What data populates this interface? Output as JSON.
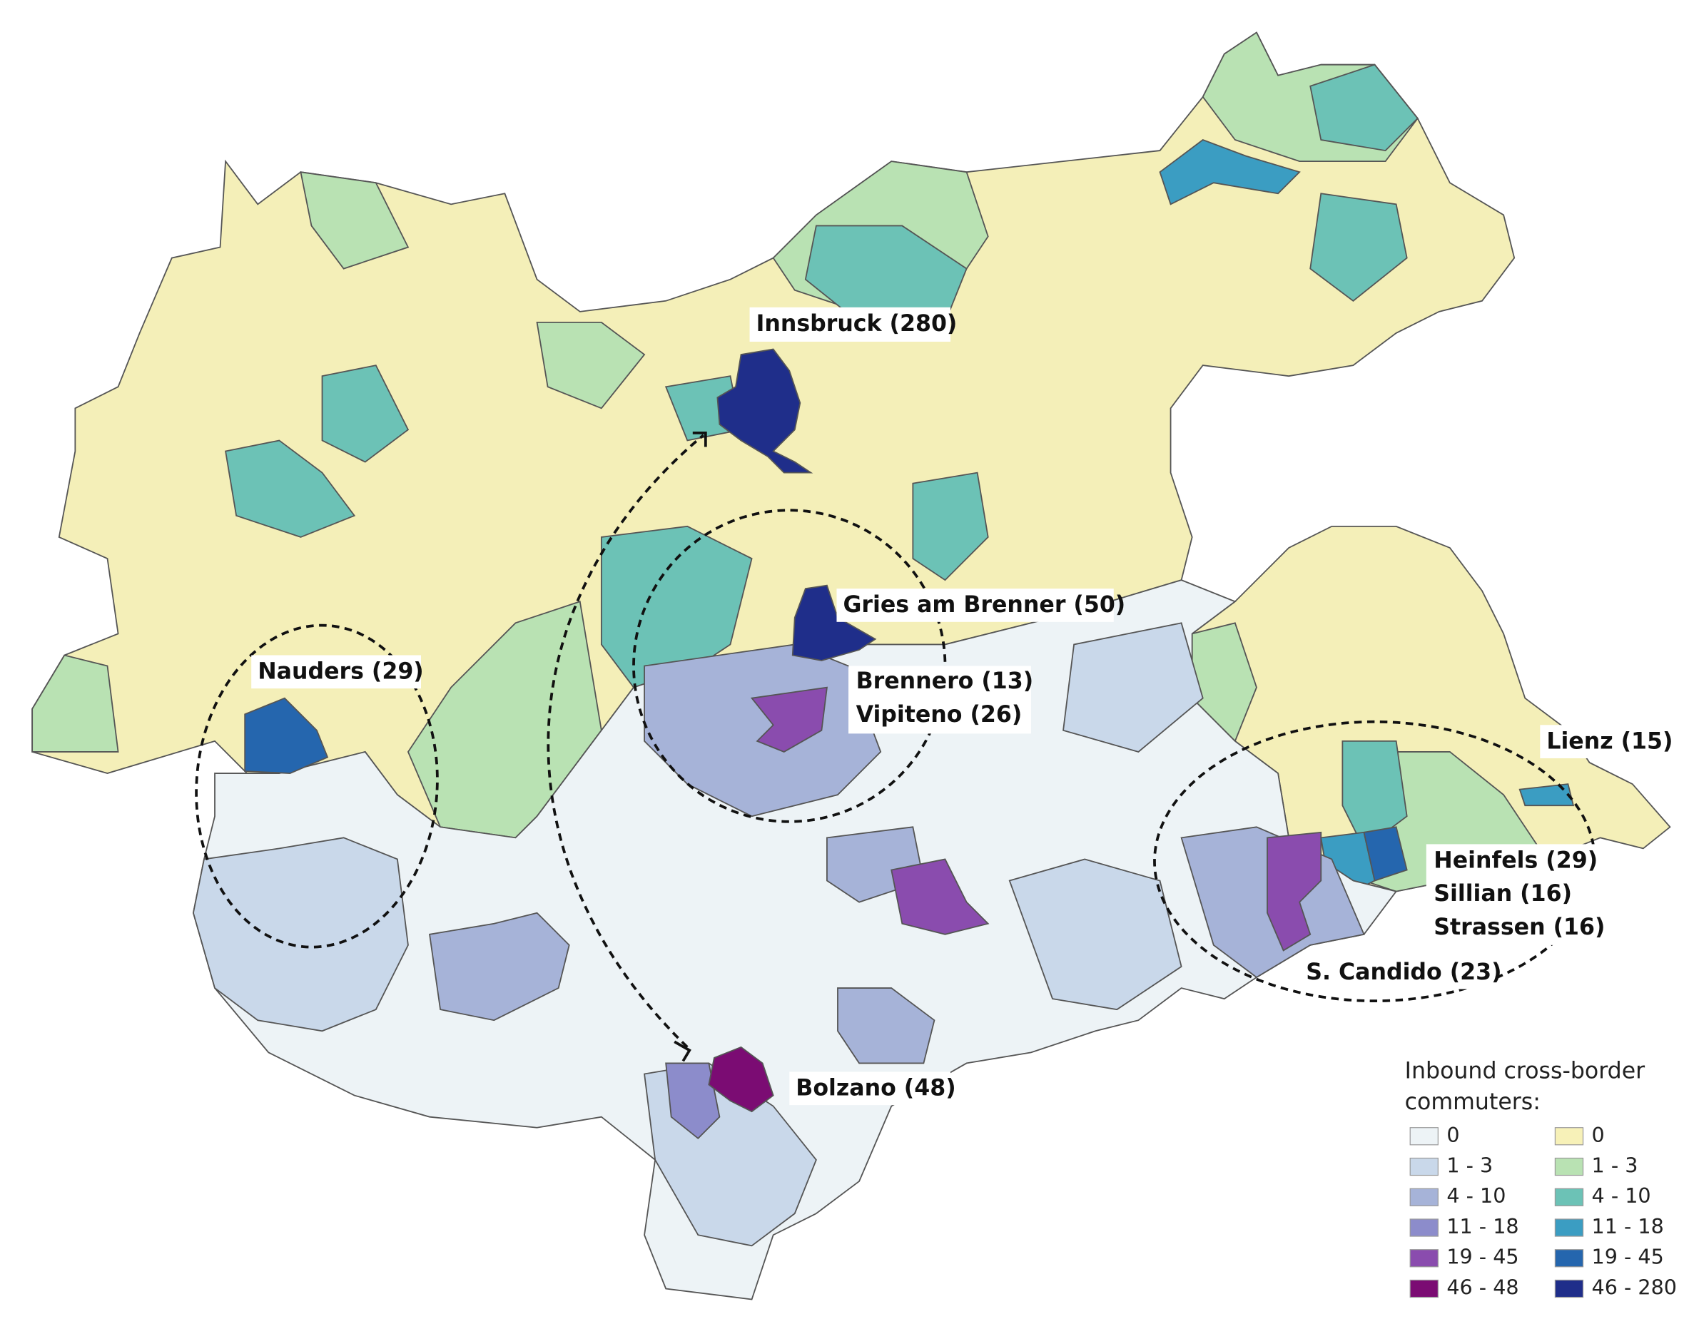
{
  "labels": {
    "innsbruck": "Innsbruck (280)",
    "gries": "Gries am Brenner (50)",
    "brennero": "Brennero (13)",
    "vipiteno": "Vipiteno (26)",
    "nauders": "Nauders (29)",
    "lienz": "Lienz (15)",
    "heinfels": "Heinfels (29)",
    "sillian": "Sillian (16)",
    "strassen": "Strassen (16)",
    "scandido": "S. Candido (23)",
    "bolzano": "Bolzano (48)"
  },
  "legend": {
    "title": [
      "Inbound cross-border",
      "commuters:"
    ],
    "italy": [
      {
        "label": "0",
        "color": "#edf3f6"
      },
      {
        "label": "1 - 3",
        "color": "#c9d8ea"
      },
      {
        "label": "4 - 10",
        "color": "#a6b3d8"
      },
      {
        "label": "11 - 18",
        "color": "#8c8ccb"
      },
      {
        "label": "19 - 45",
        "color": "#8a4cae"
      },
      {
        "label": "46 - 48",
        "color": "#7b0c73"
      }
    ],
    "austria": [
      {
        "label": "0",
        "color": "#f7f1b8"
      },
      {
        "label": "1 - 3",
        "color": "#b9e2b3"
      },
      {
        "label": "4 - 10",
        "color": "#6cc2b6"
      },
      {
        "label": "11 - 18",
        "color": "#3b9dc2"
      },
      {
        "label": "19 - 45",
        "color": "#2566ae"
      },
      {
        "label": "46 - 280",
        "color": "#1f2e8a"
      }
    ]
  }
}
